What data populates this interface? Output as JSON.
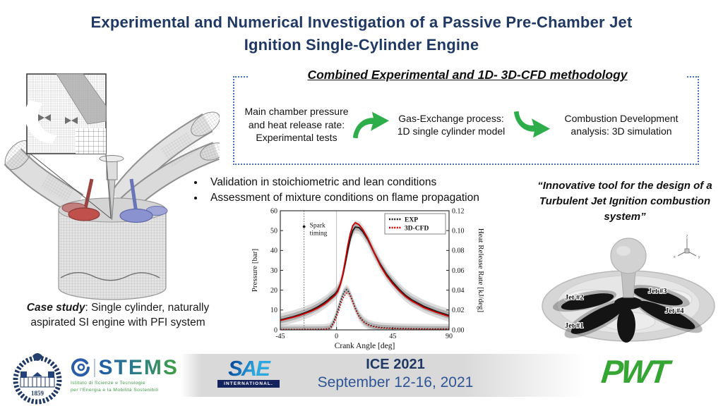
{
  "title": {
    "line1": "Experimental and Numerical Investigation of a Passive Pre-Chamber Jet",
    "line2": "Ignition Single-Cylinder Engine"
  },
  "methodology": {
    "header": "Combined Experimental and 1D- 3D-CFD methodology",
    "steps": [
      "Main chamber pressure and heat release rate: Experimental tests",
      "Gas-Exchange process: 1D single cylinder model",
      "Combustion Development analysis: 3D simulation"
    ]
  },
  "bullets": [
    "Validation in stoichiometric and lean conditions",
    "Assessment of mixture conditions on flame propagation"
  ],
  "case_study": {
    "label": "Case study",
    "text": ": Single cylinder, naturally aspirated SI engine with PFI system"
  },
  "quote": "“Innovative tool for the design of a Turbulent Jet Ignition combustion system”",
  "jets": [
    "Jet #1",
    "Jet #2",
    "Jet #3",
    "Jet #4"
  ],
  "footer": {
    "ice_title": "ICE 2021",
    "ice_date": "September 12-16, 2021",
    "sae_name": "SAE",
    "sae_sub": "INTERNATIONAL.",
    "stems_name": "STEMS",
    "stems_sub1": "Istituto di Scienze e Tecnologie",
    "stems_sub2": "per l'Energia e la Mobilità Sostenibili",
    "seal_year": "1859",
    "pwt": "PWT"
  },
  "colors": {
    "title_navy": "#1f3864",
    "box_border_blue": "#4472c4",
    "arrow_green": "#2ead4b",
    "exp_black": "#1a1a1a",
    "cfd_red": "#cc0000",
    "pwt_green": "#35a534"
  },
  "chart_data": {
    "type": "line",
    "xlabel": "Crank Angle [deg]",
    "ylabel_left": "Pressure [bar]",
    "ylabel_right": "Heat Release Rate [kJ/deg]",
    "xlim": [
      -45,
      90
    ],
    "ylim_left": [
      0,
      60
    ],
    "ylim_right": [
      0,
      0.12
    ],
    "xticks": [
      -45,
      0,
      45,
      90
    ],
    "yticks_left": [
      0,
      10,
      20,
      30,
      40,
      50,
      60
    ],
    "yticks_right": [
      0.0,
      0.02,
      0.04,
      0.06,
      0.08,
      0.1,
      0.12
    ],
    "legend": [
      {
        "label": "EXP",
        "color": "#1a1a1a"
      },
      {
        "label": "3D-CFD",
        "color": "#cc0000"
      }
    ],
    "annotation": {
      "text_line1": "Spark",
      "text_line2": "timing",
      "x": -26,
      "y": 52
    },
    "series": [
      {
        "name": "EXP pressure",
        "axis": "left",
        "color": "#1a1a1a",
        "style": "solid",
        "band": 3.2,
        "x": [
          -45,
          -40,
          -35,
          -30,
          -25,
          -20,
          -15,
          -10,
          -7,
          -5,
          -3,
          -1,
          1,
          3,
          5,
          7,
          9,
          11,
          13,
          15,
          18,
          21,
          25,
          30,
          35,
          40,
          45,
          50,
          55,
          60,
          70,
          80,
          90
        ],
        "y": [
          5.0,
          5.8,
          6.6,
          7.6,
          8.7,
          10.0,
          11.6,
          13.6,
          15.0,
          16.2,
          17.2,
          18.3,
          20.0,
          23.0,
          27.5,
          33.5,
          40.0,
          46.0,
          50.0,
          51.8,
          51.5,
          49.5,
          45.5,
          39.0,
          33.0,
          28.0,
          24.0,
          20.5,
          17.5,
          15.2,
          11.8,
          9.3,
          7.3
        ]
      },
      {
        "name": "3D-CFD pressure",
        "axis": "left",
        "color": "#cc0000",
        "style": "solid",
        "band": 0,
        "x": [
          -45,
          -40,
          -35,
          -30,
          -25,
          -20,
          -15,
          -10,
          -7,
          -5,
          -3,
          -1,
          1,
          3,
          5,
          7,
          9,
          11,
          13,
          15,
          18,
          21,
          25,
          30,
          35,
          40,
          45,
          50,
          55,
          60,
          70,
          80,
          90
        ],
        "y": [
          4.7,
          5.5,
          6.3,
          7.2,
          8.3,
          9.5,
          11.0,
          12.9,
          14.3,
          15.4,
          16.4,
          17.6,
          19.3,
          22.8,
          28.0,
          35.0,
          42.5,
          48.5,
          52.5,
          54.0,
          53.0,
          50.5,
          46.0,
          39.0,
          32.5,
          27.3,
          23.2,
          19.8,
          16.9,
          14.6,
          11.2,
          8.8,
          6.8
        ]
      },
      {
        "name": "EXP heat release rate",
        "axis": "right",
        "color": "#1a1a1a",
        "style": "dotted",
        "band": 0.005,
        "x": [
          -45,
          -30,
          -26,
          -20,
          -10,
          -6,
          -4,
          -2,
          0,
          2,
          4,
          6,
          8,
          10,
          12,
          15,
          18,
          22,
          26,
          30,
          35,
          40,
          50,
          60,
          75,
          90
        ],
        "y": [
          0.0005,
          0.0005,
          0.0006,
          0.0006,
          0.0008,
          0.0015,
          0.004,
          0.009,
          0.016,
          0.024,
          0.032,
          0.038,
          0.0405,
          0.038,
          0.032,
          0.022,
          0.014,
          0.008,
          0.005,
          0.0035,
          0.0025,
          0.002,
          0.0015,
          0.0012,
          0.001,
          0.001
        ]
      },
      {
        "name": "3D-CFD heat release rate",
        "axis": "right",
        "color": "#cc0000",
        "style": "dotted",
        "band": 0,
        "x": [
          -45,
          -30,
          -26,
          -20,
          -10,
          -6,
          -4,
          -2,
          0,
          2,
          4,
          6,
          8,
          10,
          12,
          15,
          18,
          22,
          26,
          30,
          35,
          40,
          50,
          60,
          75,
          90
        ],
        "y": [
          0.0004,
          0.0004,
          0.0005,
          0.0005,
          0.0007,
          0.0012,
          0.003,
          0.007,
          0.013,
          0.02,
          0.028,
          0.034,
          0.037,
          0.0365,
          0.031,
          0.021,
          0.013,
          0.0075,
          0.0045,
          0.003,
          0.002,
          0.0016,
          0.0012,
          0.001,
          0.0008,
          0.0008
        ]
      }
    ]
  }
}
